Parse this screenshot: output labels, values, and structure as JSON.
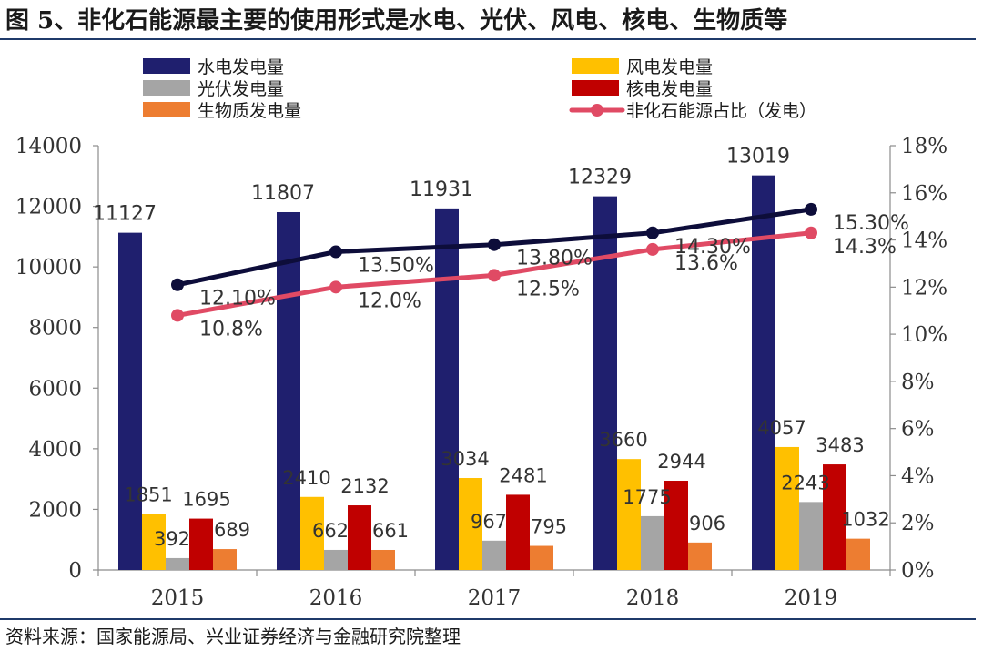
{
  "figure": {
    "title": "图 5、非化石能源最主要的使用形式是水电、光伏、风电、核电、生物质等",
    "source": "资料来源：国家能源局、兴业证券经济与金融研究院整理"
  },
  "chart_data": {
    "type": "bar",
    "categories": [
      "2015",
      "2016",
      "2017",
      "2018",
      "2019"
    ],
    "series": [
      {
        "name": "水电发电量",
        "values": [
          11127,
          11807,
          11931,
          12329,
          13019
        ],
        "color": "#1f1f6e",
        "labels": [
          "11127",
          "11807",
          "11931",
          "12329",
          "13019"
        ]
      },
      {
        "name": "风电发电量",
        "values": [
          1851,
          2410,
          3034,
          3660,
          4057
        ],
        "color": "#ffc000",
        "labels": [
          "1851",
          "2410",
          "3034",
          "3660",
          "4057"
        ]
      },
      {
        "name": "光伏发电量",
        "values": [
          392,
          662,
          967,
          1775,
          2243
        ],
        "color": "#a5a5a5",
        "labels": [
          "392",
          "662",
          "967",
          "1775",
          "2243"
        ]
      },
      {
        "name": "核电发电量",
        "values": [
          1695,
          2132,
          2481,
          2944,
          3483
        ],
        "color": "#c00000",
        "labels": [
          "1695",
          "2132",
          "2481",
          "2944",
          "3483"
        ]
      },
      {
        "name": "生物质发电量",
        "values": [
          689,
          661,
          795,
          906,
          1032
        ],
        "color": "#ed7d31",
        "labels": [
          "689",
          "661",
          "795",
          "906",
          "1032"
        ]
      }
    ],
    "lines": [
      {
        "name": "",
        "values": [
          12.1,
          13.5,
          13.8,
          14.3,
          15.3
        ],
        "color": "#0d0d3a",
        "labels": [
          "12.10%",
          "13.50%",
          "13.80%",
          "14.30%",
          "15.30%"
        ]
      },
      {
        "name": "非化石能源占比（发电）",
        "values": [
          10.8,
          12.0,
          12.5,
          13.6,
          14.3
        ],
        "color": "#e04a64",
        "labels": [
          "10.8%",
          "12.0%",
          "12.5%",
          "13.6%",
          "14.3%"
        ]
      }
    ],
    "ylim": [
      0,
      14000
    ],
    "yticks": [
      "0",
      "2000",
      "4000",
      "6000",
      "8000",
      "10000",
      "12000",
      "14000"
    ],
    "y2lim": [
      0,
      18
    ],
    "y2ticks": [
      "0%",
      "2%",
      "4%",
      "6%",
      "8%",
      "10%",
      "12%",
      "14%",
      "16%",
      "18%"
    ],
    "legend_placement": "top",
    "grid": false
  }
}
